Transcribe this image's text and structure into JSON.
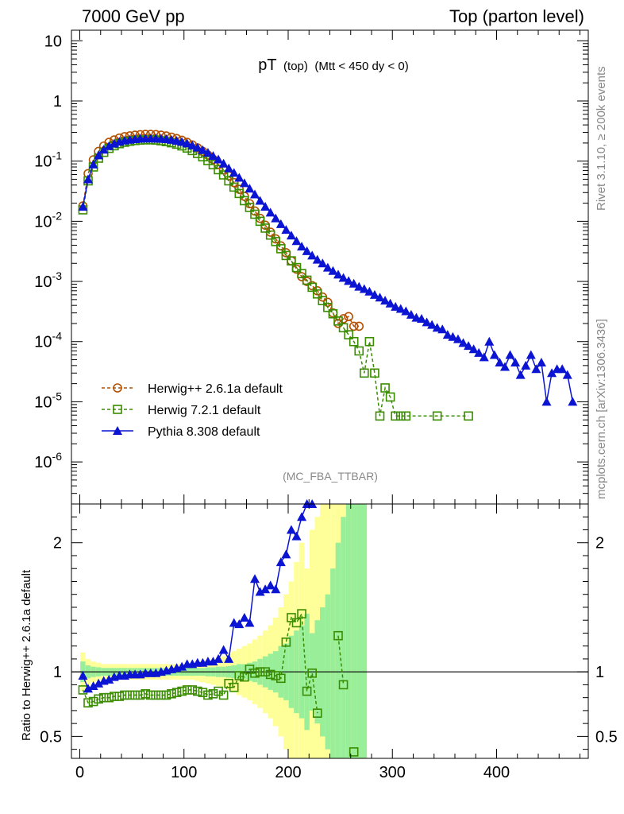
{
  "header": {
    "left": "7000 GeV pp",
    "right": "Top (parton level)"
  },
  "side": {
    "rivet": "Rivet 3.1.10, ≥ 200k events",
    "mcplots": "mcplots.cern.ch [arXiv:1306.3436]"
  },
  "chart_data": [
    {
      "type": "line",
      "title": "pT (top) (Mtt < 450 dy < 0)",
      "title_main": "pT",
      "title_sub": "(top)",
      "title_cut": "(Mtt < 450 dy < 0)",
      "watermark": "(MC_FBA_TTBAR)",
      "yscale": "log",
      "ylim": [
        2e-07,
        15
      ],
      "xlim": [
        -8,
        488
      ],
      "ytick_labels": [
        "10",
        "1",
        "10^-1",
        "10^-2",
        "10^-3",
        "10^-4",
        "10^-5",
        "10^-6"
      ],
      "legend_position": "lower-left",
      "series": [
        {
          "name": "Herwig++ 2.6.1a default",
          "color": "#b35000",
          "marker": "circle",
          "x": [
            3,
            8,
            13,
            18,
            23,
            28,
            33,
            38,
            43,
            48,
            53,
            58,
            63,
            68,
            73,
            78,
            83,
            88,
            93,
            98,
            103,
            108,
            113,
            118,
            123,
            128,
            133,
            138,
            143,
            148,
            153,
            158,
            163,
            168,
            173,
            178,
            183,
            188,
            193,
            198,
            203,
            208,
            213,
            218,
            223,
            228,
            233,
            238,
            243,
            248,
            253,
            258,
            263,
            268,
            273
          ],
          "y": [
            0.018,
            0.062,
            0.105,
            0.145,
            0.178,
            0.205,
            0.225,
            0.242,
            0.255,
            0.263,
            0.27,
            0.275,
            0.278,
            0.278,
            0.276,
            0.27,
            0.262,
            0.25,
            0.237,
            0.222,
            0.205,
            0.186,
            0.166,
            0.145,
            0.126,
            0.107,
            0.088,
            0.072,
            0.057,
            0.044,
            0.034,
            0.026,
            0.0196,
            0.0148,
            0.0112,
            0.0086,
            0.0066,
            0.0051,
            0.0039,
            0.003,
            0.0022,
            0.0016,
            0.0012,
            0.001,
            0.00085,
            0.0007,
            0.00055,
            0.00045,
            0.0003,
            0.0002,
            0.00024,
            0.00026,
            0.00018,
            0.00018,
            null
          ]
        },
        {
          "name": "Herwig 7.2.1 default",
          "color": "#3a8c00",
          "marker": "square",
          "x": [
            3,
            8,
            13,
            18,
            23,
            28,
            33,
            38,
            43,
            48,
            53,
            58,
            63,
            68,
            73,
            78,
            83,
            88,
            93,
            98,
            103,
            108,
            113,
            118,
            123,
            128,
            133,
            138,
            143,
            148,
            153,
            158,
            163,
            168,
            173,
            178,
            183,
            188,
            193,
            198,
            203,
            208,
            213,
            218,
            223,
            228,
            233,
            238,
            243,
            248,
            253,
            258,
            263,
            268,
            273,
            278,
            283,
            288,
            293,
            298,
            303,
            308,
            313,
            343,
            373
          ],
          "y": [
            0.0155,
            0.047,
            0.08,
            0.112,
            0.14,
            0.163,
            0.18,
            0.195,
            0.206,
            0.214,
            0.22,
            0.224,
            0.226,
            0.226,
            0.224,
            0.218,
            0.211,
            0.202,
            0.191,
            0.179,
            0.165,
            0.15,
            0.134,
            0.118,
            0.102,
            0.087,
            0.072,
            0.059,
            0.047,
            0.037,
            0.029,
            0.022,
            0.017,
            0.0131,
            0.01,
            0.0077,
            0.0059,
            0.0046,
            0.0035,
            0.0027,
            0.0022,
            0.0017,
            0.00135,
            0.00105,
            0.0008,
            0.00062,
            0.00048,
            0.00037,
            0.00029,
            0.00022,
            0.00017,
            0.00013,
            0.0001,
            7e-05,
            3e-05,
            0.0001,
            3e-05,
            5.8e-06,
            1.7e-05,
            1.2e-05,
            5.8e-06,
            5.8e-06,
            5.8e-06,
            5.8e-06,
            5.8e-06
          ]
        },
        {
          "name": "Pythia 8.308 default",
          "color": "#0a14d2",
          "marker": "triangle",
          "x": [
            3,
            8,
            13,
            18,
            23,
            28,
            33,
            38,
            43,
            48,
            53,
            58,
            63,
            68,
            73,
            78,
            83,
            88,
            93,
            98,
            103,
            108,
            113,
            118,
            123,
            128,
            133,
            138,
            143,
            148,
            153,
            158,
            163,
            168,
            173,
            178,
            183,
            188,
            193,
            198,
            203,
            208,
            213,
            218,
            223,
            228,
            233,
            238,
            243,
            248,
            253,
            258,
            263,
            268,
            273,
            278,
            283,
            288,
            293,
            298,
            303,
            308,
            313,
            318,
            323,
            328,
            333,
            338,
            343,
            348,
            353,
            358,
            363,
            368,
            373,
            378,
            383,
            388,
            393,
            398,
            403,
            408,
            413,
            418,
            423,
            428,
            433,
            438,
            443,
            448,
            453,
            458,
            463,
            468,
            473
          ],
          "y": [
            0.0175,
            0.05,
            0.088,
            0.125,
            0.155,
            0.178,
            0.196,
            0.21,
            0.22,
            0.227,
            0.232,
            0.236,
            0.238,
            0.238,
            0.237,
            0.235,
            0.232,
            0.226,
            0.218,
            0.209,
            0.197,
            0.183,
            0.168,
            0.153,
            0.138,
            0.122,
            0.107,
            0.091,
            0.076,
            0.064,
            0.053,
            0.043,
            0.035,
            0.028,
            0.022,
            0.0175,
            0.014,
            0.0112,
            0.009,
            0.0072,
            0.0058,
            0.0047,
            0.0038,
            0.0032,
            0.0027,
            0.0023,
            0.002,
            0.0017,
            0.0015,
            0.0013,
            0.00115,
            0.00102,
            0.00092,
            0.00082,
            0.00075,
            0.00068,
            0.0006,
            0.00054,
            0.00048,
            0.00043,
            0.00038,
            0.00035,
            0.00032,
            0.00028,
            0.00025,
            0.00024,
            0.00021,
            0.00019,
            0.00017,
            0.00016,
            0.00013,
            0.00012,
            0.00011,
            9.5e-05,
            8.5e-05,
            7.5e-05,
            6.5e-05,
            5.5e-05,
            0.0001,
            6e-05,
            4.5e-05,
            3.8e-05,
            6e-05,
            4.5e-05,
            2.8e-05,
            4e-05,
            6e-05,
            3.5e-05,
            4.5e-05,
            1e-05,
            3e-05,
            3.5e-05,
            3.5e-05,
            2.8e-05,
            1e-05
          ]
        }
      ]
    },
    {
      "type": "line",
      "ylabel": "Ratio to Herwig++ 2.6.1a default",
      "ylim": [
        0.33,
        2.3
      ],
      "yticks": [
        0.5,
        1,
        2
      ],
      "ytick_labels": [
        "0.5",
        "1",
        "2"
      ],
      "xlim": [
        -8,
        488
      ],
      "xticks": [
        0,
        100,
        200,
        300,
        400
      ],
      "xtick_labels": [
        "0",
        "100",
        "200",
        "300",
        "400"
      ],
      "reference": 1,
      "bands": {
        "x": [
          3,
          8,
          13,
          18,
          23,
          28,
          33,
          38,
          43,
          48,
          53,
          58,
          63,
          68,
          73,
          78,
          83,
          88,
          93,
          98,
          103,
          108,
          113,
          118,
          123,
          128,
          133,
          138,
          143,
          148,
          153,
          158,
          163,
          168,
          173,
          178,
          183,
          188,
          193,
          198,
          203,
          208,
          213,
          218,
          223,
          228,
          233,
          238,
          243,
          248,
          253,
          258,
          263,
          268,
          273
        ],
        "inner": [
          0.08,
          0.05,
          0.04,
          0.035,
          0.03,
          0.03,
          0.03,
          0.03,
          0.03,
          0.03,
          0.03,
          0.03,
          0.03,
          0.03,
          0.03,
          0.03,
          0.03,
          0.03,
          0.03,
          0.03,
          0.03,
          0.03,
          0.03,
          0.03,
          0.035,
          0.035,
          0.04,
          0.04,
          0.045,
          0.05,
          0.06,
          0.06,
          0.07,
          0.08,
          0.1,
          0.12,
          0.14,
          0.16,
          0.2,
          0.22,
          0.28,
          0.32,
          0.36,
          0.45,
          0.3,
          0.4,
          0.5,
          0.6,
          0.8,
          1.0,
          1.2,
          1.3,
          1.4,
          1.5,
          1.6
        ],
        "outer": [
          0.15,
          0.1,
          0.08,
          0.07,
          0.06,
          0.06,
          0.06,
          0.06,
          0.06,
          0.06,
          0.06,
          0.06,
          0.06,
          0.06,
          0.06,
          0.06,
          0.06,
          0.06,
          0.06,
          0.06,
          0.06,
          0.06,
          0.07,
          0.08,
          0.09,
          0.1,
          0.11,
          0.12,
          0.14,
          0.16,
          0.18,
          0.2,
          0.22,
          0.25,
          0.28,
          0.32,
          0.36,
          0.42,
          0.5,
          0.6,
          0.7,
          0.85,
          1.0,
          0.8,
          1.1,
          1.2,
          1.3,
          1.4,
          1.5,
          1.6,
          1.8,
          2.0,
          2.0,
          2.0,
          2.0
        ]
      },
      "series": [
        {
          "name": "Herwig 7.2.1 default",
          "color": "#3a8c00",
          "marker": "square",
          "x": [
            3,
            8,
            13,
            18,
            23,
            28,
            33,
            38,
            43,
            48,
            53,
            58,
            63,
            68,
            73,
            78,
            83,
            88,
            93,
            98,
            103,
            108,
            113,
            118,
            123,
            128,
            133,
            138,
            143,
            148,
            153,
            158,
            163,
            168,
            173,
            178,
            183,
            188,
            193,
            198,
            203,
            208,
            213,
            218,
            223,
            228,
            233,
            238,
            243,
            248,
            253,
            258,
            263,
            268,
            273
          ],
          "y": [
            0.86,
            0.76,
            0.77,
            0.79,
            0.8,
            0.8,
            0.81,
            0.81,
            0.82,
            0.82,
            0.82,
            0.82,
            0.83,
            0.82,
            0.82,
            0.82,
            0.82,
            0.83,
            0.84,
            0.85,
            0.86,
            0.86,
            0.85,
            0.84,
            0.82,
            0.83,
            0.85,
            0.82,
            0.91,
            0.88,
            0.97,
            0.96,
            1.02,
            0.99,
            1.0,
            1.0,
            0.98,
            0.97,
            0.95,
            1.23,
            1.42,
            1.38,
            1.45,
            0.85,
            0.99,
            0.68,
            null,
            null,
            null,
            1.28,
            0.9,
            null,
            0.38,
            null,
            null
          ]
        },
        {
          "name": "Pythia 8.308 default",
          "color": "#0a14d2",
          "marker": "triangle",
          "x": [
            3,
            8,
            13,
            18,
            23,
            28,
            33,
            38,
            43,
            48,
            53,
            58,
            63,
            68,
            73,
            78,
            83,
            88,
            93,
            98,
            103,
            108,
            113,
            118,
            123,
            128,
            133,
            138,
            143,
            148,
            153,
            158,
            163,
            168,
            173,
            178,
            183,
            188,
            193,
            198,
            203,
            208,
            213,
            218,
            223
          ],
          "y": [
            0.97,
            0.87,
            0.89,
            0.91,
            0.93,
            0.94,
            0.96,
            0.97,
            0.97,
            0.98,
            0.98,
            0.98,
            0.99,
            0.99,
            0.99,
            1.0,
            1.01,
            1.02,
            1.03,
            1.04,
            1.06,
            1.06,
            1.07,
            1.07,
            1.08,
            1.08,
            1.1,
            1.17,
            1.1,
            1.38,
            1.37,
            1.42,
            1.38,
            1.72,
            1.62,
            1.64,
            1.67,
            1.64,
            1.85,
            1.91,
            2.1,
            2.05,
            2.2,
            2.3,
            2.3
          ]
        }
      ]
    }
  ]
}
